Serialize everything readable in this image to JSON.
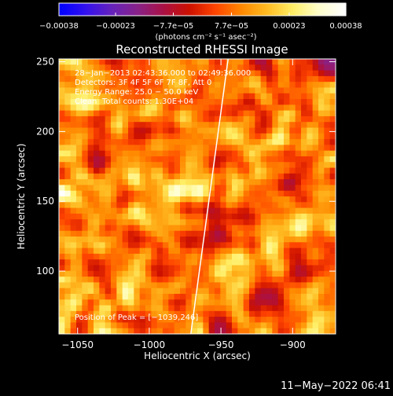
{
  "chart_data": {
    "type": "heatmap",
    "title": "Reconstructed RHESSI Image",
    "xlabel": "Heliocentric X (arcsec)",
    "ylabel": "Heliocentric Y (arcsec)",
    "xlim": [
      -1063,
      -870
    ],
    "ylim": [
      55,
      252
    ],
    "xticks": [
      -1050,
      -1000,
      -950,
      -900
    ],
    "xtick_labels": [
      "−1050",
      "−1000",
      "−950",
      "−900"
    ],
    "yticks": [
      100,
      150,
      200,
      250
    ],
    "ytick_labels": [
      "100",
      "150",
      "200",
      "250"
    ],
    "colorbar": {
      "min": -0.00038,
      "max": 0.00038,
      "ticks": [
        -0.00038,
        -0.00023,
        -7.7e-05,
        7.7e-05,
        0.00023,
        0.00038
      ],
      "tick_labels": [
        "−0.00038",
        "−0.00023",
        "−7.7e−05",
        "7.7e−05",
        "0.00023",
        "0.00038"
      ],
      "units": "(photons cm⁻² s⁻¹ asec⁻²)",
      "colors": [
        "#0000ff",
        "#3311ee",
        "#6622bb",
        "#882288",
        "#aa1144",
        "#cc1100",
        "#ff4400",
        "#ff8800",
        "#ffbb22",
        "#ffee66",
        "#ffffcc",
        "#ffffff"
      ]
    },
    "annotations": {
      "time_range": "28−Jan−2013 02:43:36.000 to 02:49:36.000",
      "detectors": "Detectors: 3F 4F 5F 6F 7F 8F, Att 0",
      "energy": "Energy Range: 25.0 − 50.0 keV",
      "clean": "Clean",
      "counts": "Total counts: 1.30E+04",
      "peak": "Position of Peak = [−1039,246]"
    },
    "limb_line": {
      "x": [
        -971,
        -945
      ],
      "y": [
        55,
        252
      ]
    },
    "grid": false,
    "seed": 20130128
  },
  "footer": {
    "date": "11−May−2022 06:41"
  },
  "colors": {
    "background": "#000000",
    "text": "#ffffff",
    "limb": "#ffffff"
  }
}
